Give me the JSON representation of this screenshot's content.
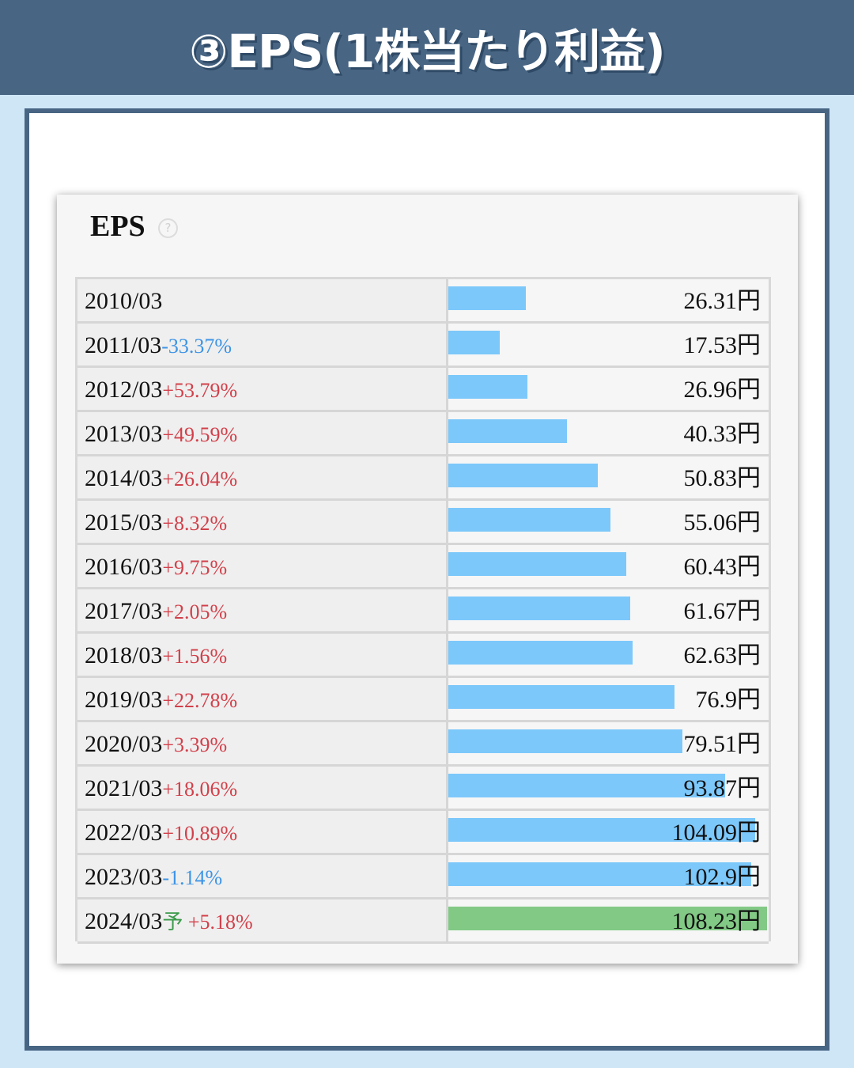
{
  "header": {
    "title": "③EPS(1株当たり利益)"
  },
  "card": {
    "title": "EPS",
    "help_icon": "question-circle-icon",
    "help_glyph": "?"
  },
  "colors": {
    "header_bg": "#486583",
    "bar_actual": "#7cc8fb",
    "bar_forecast": "#82c985",
    "change_positive": "#d2404a",
    "change_negative": "#3d94e6",
    "forecast_mark": "#3a9a4a"
  },
  "chart_data": {
    "type": "bar",
    "orientation": "horizontal",
    "title": "EPS",
    "unit": "円",
    "categories": [
      "2010/03",
      "2011/03",
      "2012/03",
      "2013/03",
      "2014/03",
      "2015/03",
      "2016/03",
      "2017/03",
      "2018/03",
      "2019/03",
      "2020/03",
      "2021/03",
      "2022/03",
      "2023/03",
      "2024/03"
    ],
    "values": [
      26.31,
      17.53,
      26.96,
      40.33,
      50.83,
      55.06,
      60.43,
      61.67,
      62.63,
      76.9,
      79.51,
      93.87,
      104.09,
      102.9,
      108.23
    ],
    "rows": [
      {
        "period": "2010/03",
        "change": "",
        "forecast_mark": "",
        "value": 26.31,
        "value_label": "26.31円",
        "forecast": false
      },
      {
        "period": "2011/03",
        "change": "-33.37%",
        "forecast_mark": "",
        "value": 17.53,
        "value_label": "17.53円",
        "forecast": false
      },
      {
        "period": "2012/03",
        "change": "+53.79%",
        "forecast_mark": "",
        "value": 26.96,
        "value_label": "26.96円",
        "forecast": false
      },
      {
        "period": "2013/03",
        "change": "+49.59%",
        "forecast_mark": "",
        "value": 40.33,
        "value_label": "40.33円",
        "forecast": false
      },
      {
        "period": "2014/03",
        "change": "+26.04%",
        "forecast_mark": "",
        "value": 50.83,
        "value_label": "50.83円",
        "forecast": false
      },
      {
        "period": "2015/03",
        "change": "+8.32%",
        "forecast_mark": "",
        "value": 55.06,
        "value_label": "55.06円",
        "forecast": false
      },
      {
        "period": "2016/03",
        "change": "+9.75%",
        "forecast_mark": "",
        "value": 60.43,
        "value_label": "60.43円",
        "forecast": false
      },
      {
        "period": "2017/03",
        "change": "+2.05%",
        "forecast_mark": "",
        "value": 61.67,
        "value_label": "61.67円",
        "forecast": false
      },
      {
        "period": "2018/03",
        "change": "+1.56%",
        "forecast_mark": "",
        "value": 62.63,
        "value_label": "62.63円",
        "forecast": false
      },
      {
        "period": "2019/03",
        "change": "+22.78%",
        "forecast_mark": "",
        "value": 76.9,
        "value_label": "76.9円",
        "forecast": false
      },
      {
        "period": "2020/03",
        "change": "+3.39%",
        "forecast_mark": "",
        "value": 79.51,
        "value_label": "79.51円",
        "forecast": false
      },
      {
        "period": "2021/03",
        "change": "+18.06%",
        "forecast_mark": "",
        "value": 93.87,
        "value_label": "93.87円",
        "forecast": false
      },
      {
        "period": "2022/03",
        "change": "+10.89%",
        "forecast_mark": "",
        "value": 104.09,
        "value_label": "104.09円",
        "forecast": false
      },
      {
        "period": "2023/03",
        "change": "-1.14%",
        "forecast_mark": "",
        "value": 102.9,
        "value_label": "102.9円",
        "forecast": false
      },
      {
        "period": "2024/03",
        "change": "+5.18%",
        "forecast_mark": "予",
        "value": 108.23,
        "value_label": "108.23円",
        "forecast": true
      }
    ],
    "xlim": [
      0,
      108.23
    ],
    "grid": false,
    "legend": "none"
  }
}
